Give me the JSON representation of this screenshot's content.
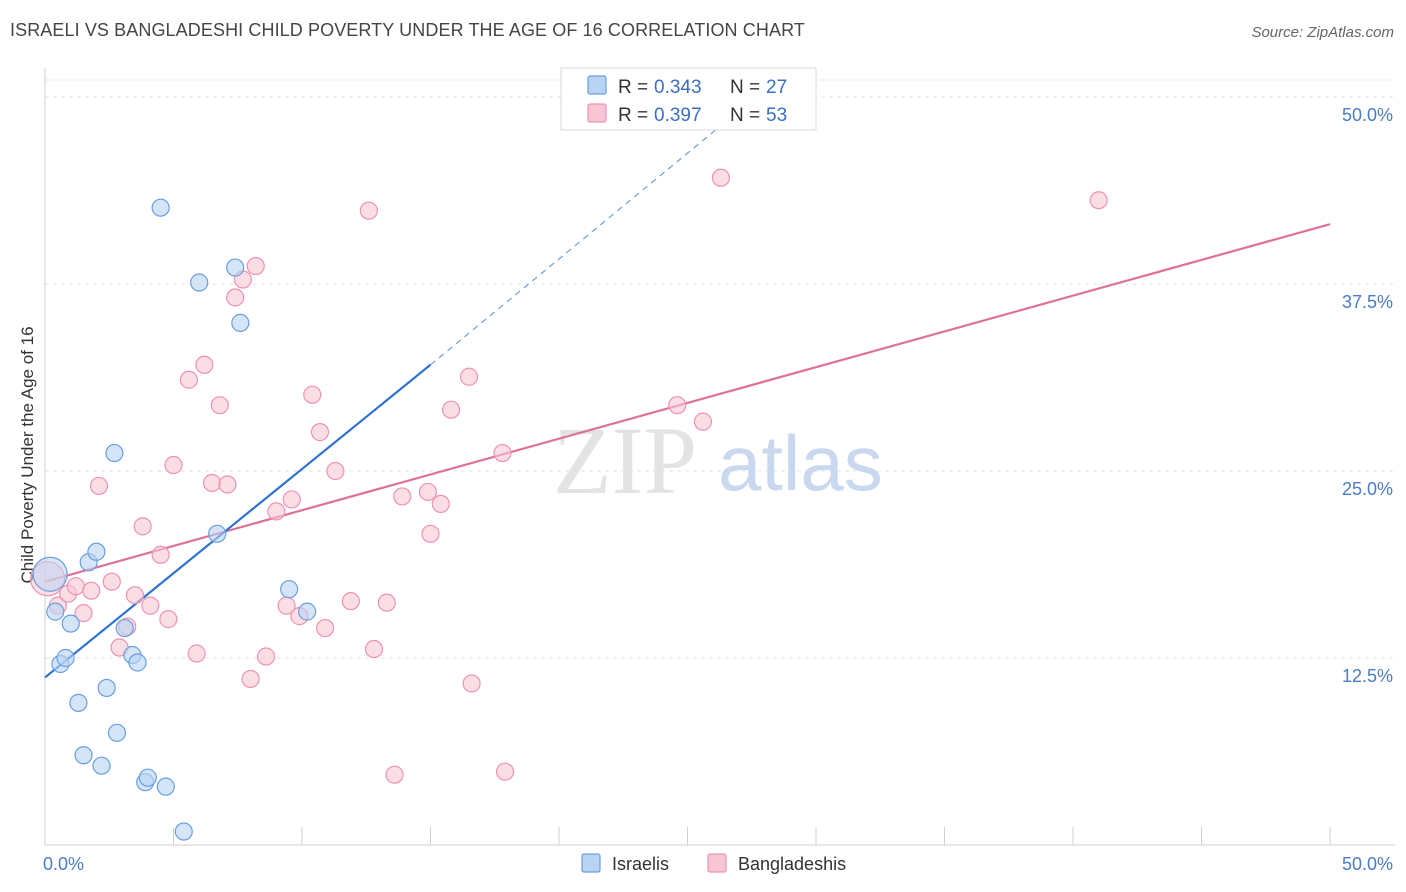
{
  "header": {
    "title": "ISRAELI VS BANGLADESHI CHILD POVERTY UNDER THE AGE OF 16 CORRELATION CHART",
    "source": "Source: ZipAtlas.com"
  },
  "watermark": {
    "zip": "ZIP",
    "atlas": "atlas"
  },
  "colors": {
    "israelis_fill": "#b9d3f3",
    "israelis_stroke": "#6a9ee0",
    "israelis_line": "#2f72d0",
    "bangladeshis_fill": "#f9c6d6",
    "bangladeshis_stroke": "#ee93ae",
    "bangladeshis_line": "#e0709a"
  },
  "legend": {
    "rows": [
      {
        "r_label": "R =",
        "r_value": "0.343",
        "n_label": "N =",
        "n_value": "27"
      },
      {
        "r_label": "R =",
        "r_value": "0.397",
        "n_label": "N =",
        "n_value": "53"
      }
    ]
  },
  "chart_data": {
    "type": "scatter",
    "title": "ISRAELI VS BANGLADESHI CHILD POVERTY UNDER THE AGE OF 16 CORRELATION CHART",
    "xlabel": "",
    "ylabel": "Child Poverty Under the Age of 16",
    "xlim": [
      0,
      50
    ],
    "ylim": [
      0,
      50
    ],
    "x_tick_labels": [
      "0.0%",
      "50.0%"
    ],
    "y_ticks": [
      12.5,
      25.0,
      37.5,
      50.0
    ],
    "y_tick_labels": [
      "12.5%",
      "25.0%",
      "37.5%",
      "50.0%"
    ],
    "grid": true,
    "legend_placement": "top-center",
    "series": [
      {
        "name": "Israelis",
        "r": 0.343,
        "n": 27,
        "trend": {
          "x": [
            0,
            15
          ],
          "y": [
            11.2,
            32.1
          ]
        },
        "trend_extension": {
          "x": [
            15,
            27.3
          ],
          "y": [
            32.1,
            49.5
          ]
        },
        "points": [
          {
            "x": 0.2,
            "y": 18.1,
            "big": true
          },
          {
            "x": 0.4,
            "y": 15.6
          },
          {
            "x": 0.6,
            "y": 12.1
          },
          {
            "x": 0.8,
            "y": 12.5
          },
          {
            "x": 1.0,
            "y": 14.8
          },
          {
            "x": 1.7,
            "y": 18.9
          },
          {
            "x": 2.0,
            "y": 19.6
          },
          {
            "x": 1.5,
            "y": 6.0
          },
          {
            "x": 1.3,
            "y": 9.5
          },
          {
            "x": 2.2,
            "y": 5.3
          },
          {
            "x": 2.4,
            "y": 10.5
          },
          {
            "x": 2.8,
            "y": 7.5
          },
          {
            "x": 2.7,
            "y": 26.2
          },
          {
            "x": 3.1,
            "y": 14.5
          },
          {
            "x": 3.4,
            "y": 12.7
          },
          {
            "x": 3.6,
            "y": 12.2
          },
          {
            "x": 3.9,
            "y": 4.2
          },
          {
            "x": 4.0,
            "y": 4.5
          },
          {
            "x": 4.7,
            "y": 3.9
          },
          {
            "x": 4.5,
            "y": 42.6
          },
          {
            "x": 6.0,
            "y": 37.6
          },
          {
            "x": 7.4,
            "y": 38.6
          },
          {
            "x": 7.6,
            "y": 34.9
          },
          {
            "x": 6.7,
            "y": 20.8
          },
          {
            "x": 9.5,
            "y": 17.1
          },
          {
            "x": 10.2,
            "y": 15.6
          },
          {
            "x": 5.4,
            "y": 0.9
          }
        ]
      },
      {
        "name": "Bangladeshis",
        "r": 0.397,
        "n": 53,
        "trend": {
          "x": [
            0,
            50
          ],
          "y": [
            17.6,
            41.5
          ]
        },
        "points": [
          {
            "x": 0.1,
            "y": 17.8,
            "big": true
          },
          {
            "x": 0.5,
            "y": 16.0
          },
          {
            "x": 0.9,
            "y": 16.8
          },
          {
            "x": 1.2,
            "y": 17.3
          },
          {
            "x": 1.5,
            "y": 15.5
          },
          {
            "x": 1.8,
            "y": 17.0
          },
          {
            "x": 2.1,
            "y": 24.0
          },
          {
            "x": 2.6,
            "y": 17.6
          },
          {
            "x": 2.9,
            "y": 13.2
          },
          {
            "x": 3.2,
            "y": 14.6
          },
          {
            "x": 3.5,
            "y": 16.7
          },
          {
            "x": 3.8,
            "y": 21.3
          },
          {
            "x": 4.1,
            "y": 16.0
          },
          {
            "x": 4.5,
            "y": 19.4
          },
          {
            "x": 4.8,
            "y": 15.1
          },
          {
            "x": 5.0,
            "y": 25.4
          },
          {
            "x": 5.6,
            "y": 31.1
          },
          {
            "x": 5.9,
            "y": 12.8
          },
          {
            "x": 6.2,
            "y": 32.1
          },
          {
            "x": 6.5,
            "y": 24.2
          },
          {
            "x": 6.8,
            "y": 29.4
          },
          {
            "x": 7.1,
            "y": 24.1
          },
          {
            "x": 7.4,
            "y": 36.6
          },
          {
            "x": 7.7,
            "y": 37.8
          },
          {
            "x": 8.0,
            "y": 11.1
          },
          {
            "x": 8.2,
            "y": 38.7
          },
          {
            "x": 8.6,
            "y": 12.6
          },
          {
            "x": 9.0,
            "y": 22.3
          },
          {
            "x": 9.4,
            "y": 16.0
          },
          {
            "x": 9.6,
            "y": 23.1
          },
          {
            "x": 9.9,
            "y": 15.3
          },
          {
            "x": 10.4,
            "y": 30.1
          },
          {
            "x": 10.7,
            "y": 27.6
          },
          {
            "x": 10.9,
            "y": 14.5
          },
          {
            "x": 11.3,
            "y": 25.0
          },
          {
            "x": 11.9,
            "y": 16.3
          },
          {
            "x": 12.6,
            "y": 42.4
          },
          {
            "x": 12.8,
            "y": 13.1
          },
          {
            "x": 13.3,
            "y": 16.2
          },
          {
            "x": 13.6,
            "y": 4.7
          },
          {
            "x": 13.9,
            "y": 23.3
          },
          {
            "x": 14.9,
            "y": 23.6
          },
          {
            "x": 15.0,
            "y": 20.8
          },
          {
            "x": 15.4,
            "y": 22.8
          },
          {
            "x": 15.8,
            "y": 29.1
          },
          {
            "x": 16.5,
            "y": 31.3
          },
          {
            "x": 16.6,
            "y": 10.8
          },
          {
            "x": 17.8,
            "y": 26.2
          },
          {
            "x": 17.9,
            "y": 4.9
          },
          {
            "x": 24.6,
            "y": 29.4
          },
          {
            "x": 25.6,
            "y": 28.3
          },
          {
            "x": 26.3,
            "y": 44.6
          },
          {
            "x": 41.0,
            "y": 43.1
          }
        ]
      }
    ]
  }
}
